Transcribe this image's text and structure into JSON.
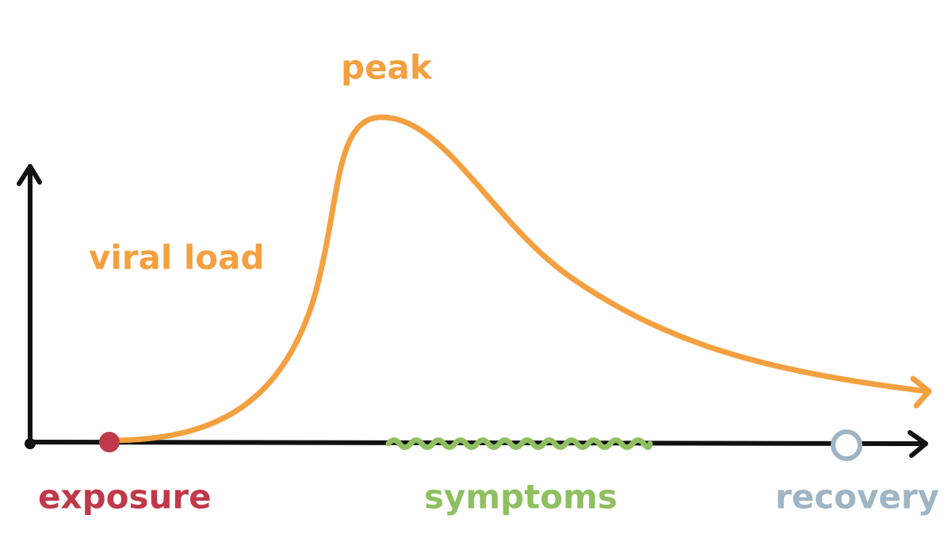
{
  "labels": {
    "peak": "peak",
    "y_axis": "viral load",
    "exposure": "exposure",
    "symptoms": "symptoms",
    "recovery": "recovery"
  }
}
